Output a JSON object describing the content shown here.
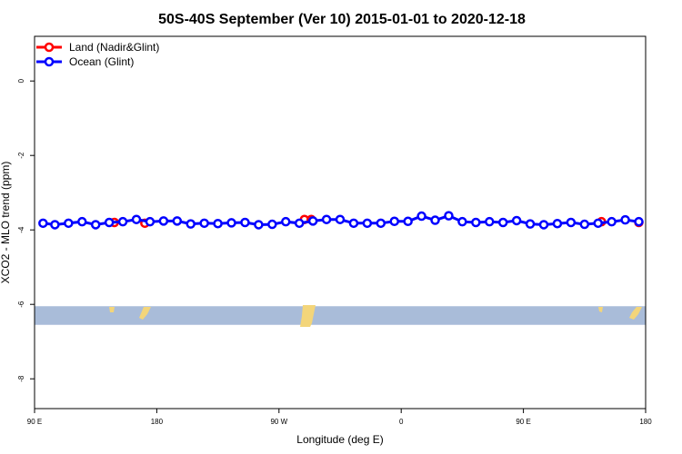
{
  "chart_data": {
    "type": "line",
    "title": "50S-40S September (Ver 10)   2015-01-01 to 2020-12-18",
    "xlabel": "Longitude (deg E)",
    "ylabel": "XCO2 - MLO trend (ppm)",
    "xlim": [
      90,
      450
    ],
    "ylim": [
      -8.8,
      1.2
    ],
    "x_ticks": [
      {
        "value": 90,
        "label": "90 E"
      },
      {
        "value": 162,
        "label": "180"
      },
      {
        "value": 234,
        "label": "90 W"
      },
      {
        "value": 306,
        "label": "0"
      },
      {
        "value": 378,
        "label": "90 E"
      },
      {
        "value": 450,
        "label": "180"
      }
    ],
    "y_ticks": [
      {
        "value": 0,
        "label": "0"
      },
      {
        "value": -2,
        "label": "-2"
      },
      {
        "value": -4,
        "label": "-4"
      },
      {
        "value": -6,
        "label": "-6"
      },
      {
        "value": -8,
        "label": "-8"
      }
    ],
    "legend": {
      "position": "top-left",
      "entries": [
        {
          "name": "Land (Nadir&Glint)",
          "color": "#ff0000"
        },
        {
          "name": "Ocean (Glint)",
          "color": "#0000ff"
        }
      ]
    },
    "series": [
      {
        "name": "Land (Nadir&Glint)",
        "color": "#ff0000",
        "x": [
          137,
          155,
          249,
          253,
          424,
          446
        ],
        "y": [
          -3.8,
          -3.82,
          -3.72,
          -3.72,
          -3.78,
          -3.8
        ]
      },
      {
        "name": "Ocean (Glint)",
        "color": "#0000ff",
        "x": [
          95,
          102,
          110,
          118,
          126,
          134,
          142,
          150,
          158,
          166,
          174,
          182,
          190,
          198,
          206,
          214,
          222,
          230,
          238,
          246,
          254,
          262,
          270,
          278,
          286,
          294,
          302,
          310,
          318,
          326,
          334,
          342,
          350,
          358,
          366,
          374,
          382,
          390,
          398,
          406,
          414,
          422,
          430,
          438,
          446
        ],
        "y": [
          -3.82,
          -3.86,
          -3.82,
          -3.78,
          -3.86,
          -3.8,
          -3.78,
          -3.72,
          -3.78,
          -3.76,
          -3.76,
          -3.84,
          -3.82,
          -3.83,
          -3.81,
          -3.8,
          -3.86,
          -3.85,
          -3.78,
          -3.82,
          -3.76,
          -3.72,
          -3.72,
          -3.82,
          -3.82,
          -3.82,
          -3.77,
          -3.77,
          -3.63,
          -3.74,
          -3.62,
          -3.78,
          -3.8,
          -3.78,
          -3.8,
          -3.75,
          -3.84,
          -3.86,
          -3.83,
          -3.8,
          -3.85,
          -3.82,
          -3.78,
          -3.73,
          -3.78
        ]
      }
    ],
    "background_map": {
      "ocean_color": "#a9bcd9",
      "land_color": "#f3d57a",
      "lat_band": [
        -6.05,
        -6.55
      ]
    },
    "grid": false
  }
}
